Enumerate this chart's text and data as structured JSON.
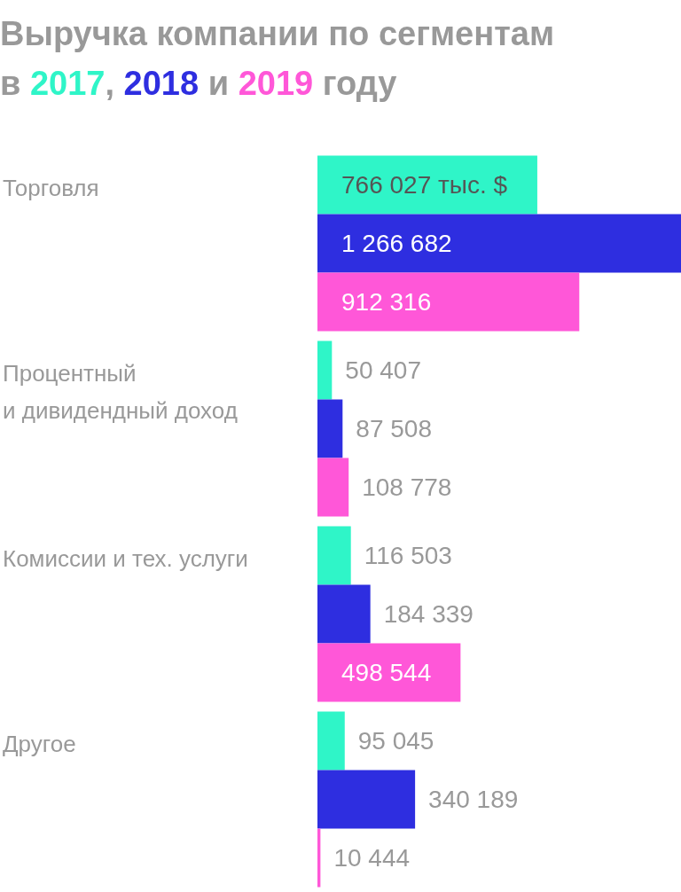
{
  "chart_data": {
    "type": "bar",
    "orientation": "horizontal",
    "title": "Выручка компании по сегментам",
    "subtitle": "в 2017, 2018 и 2019 году",
    "categories": [
      "Торговля",
      "Процентный\nи дивидендный доход",
      "Комиссии и тех. услуги",
      "Другое"
    ],
    "series": [
      {
        "color": "#2ff5c8",
        "values": [
          766027,
          50407,
          116503,
          95045
        ],
        "value_labels": [
          "766 027 тыс. $",
          "50 407",
          "116 503",
          "95 045"
        ]
      },
      {
        "color": "#2e2ee0",
        "values": [
          1266682,
          87508,
          184339,
          340189
        ],
        "value_labels": [
          "1 266 682",
          "87 508",
          "184 339",
          "340 189"
        ]
      },
      {
        "color": "#ff57d8",
        "values": [
          912316,
          108778,
          498544,
          10444
        ],
        "value_labels": [
          "912 316",
          "108 778",
          "498 544",
          "10 444"
        ]
      }
    ],
    "xlim": [
      0,
      1266682
    ],
    "tick_labels": "y"
  }
}
